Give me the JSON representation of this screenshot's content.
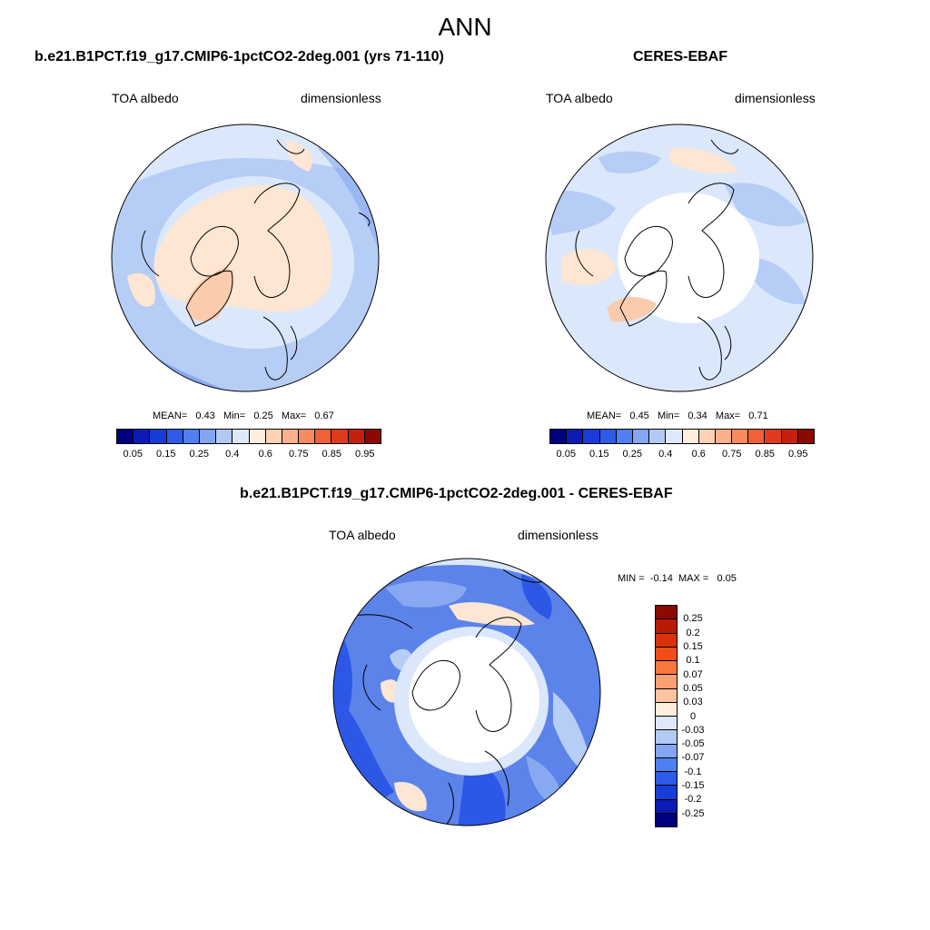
{
  "title": "ANN",
  "panels": [
    {
      "title": "b.e21.B1PCT.f19_g17.CMIP6-1pctCO2-2deg.001 (yrs 71-110)",
      "left_label": "TOA albedo",
      "right_label": "dimensionless",
      "stats": {
        "mean_label": "MEAN=",
        "mean": "0.43",
        "min_label": "Min=",
        "min": "0.25",
        "max_label": "Max=",
        "max": "0.67"
      }
    },
    {
      "title": "CERES-EBAF",
      "left_label": "TOA albedo",
      "right_label": "dimensionless",
      "stats": {
        "mean_label": "MEAN=",
        "mean": "0.45",
        "min_label": "Min=",
        "min": "0.34",
        "max_label": "Max=",
        "max": "0.71"
      }
    }
  ],
  "diff_panel": {
    "title": "b.e21.B1PCT.f19_g17.CMIP6-1pctCO2-2deg.001 - CERES-EBAF",
    "left_label": "TOA albedo",
    "right_label": "dimensionless",
    "stats": {
      "min_label": "MIN =",
      "min": "-0.14",
      "max_label": "MAX =",
      "max": "0.05"
    }
  },
  "colorbar_abs": {
    "colors": [
      "#00007f",
      "#0a1cb3",
      "#1a3cd6",
      "#2e5ae8",
      "#4f7ff0",
      "#83a5f2",
      "#b3c9f5",
      "#dde9fb",
      "#ffeedd",
      "#fdd1b6",
      "#fbb08c",
      "#f78b5e",
      "#f0613a",
      "#de3b1c",
      "#c4200d",
      "#8a0a00"
    ],
    "tick_labels": [
      "0.05",
      "0.15",
      "0.25",
      "0.4",
      "0.6",
      "0.75",
      "0.85",
      "0.95"
    ]
  },
  "colorbar_diff": {
    "colors": [
      "#8a0a00",
      "#b81a06",
      "#d8320d",
      "#f04e18",
      "#f7773e",
      "#f99f72",
      "#fcc3a3",
      "#ffeedd",
      "#dde9fb",
      "#b3c9f5",
      "#83a5f2",
      "#4f7ff0",
      "#2e5ae8",
      "#1a3cd6",
      "#0a1cb3",
      "#00007f"
    ],
    "tick_labels": [
      "0.25",
      "0.2",
      "0.15",
      "0.1",
      "0.07",
      "0.05",
      "0.03",
      "0",
      "-0.03",
      "-0.05",
      "-0.07",
      "-0.1",
      "-0.15",
      "-0.2",
      "-0.25"
    ]
  },
  "map_colors": {
    "land_warm": "#fde6d4",
    "greenland_warm": "#fbcbae",
    "ocean_light": "#dbe8fb",
    "ocean_mid": "#b6cdf6",
    "ocean_dark": "#88a9f1",
    "ocean_deep": "#5b83ea",
    "diff_strong": "#2d58e6",
    "polar_white": "#ffffff"
  }
}
